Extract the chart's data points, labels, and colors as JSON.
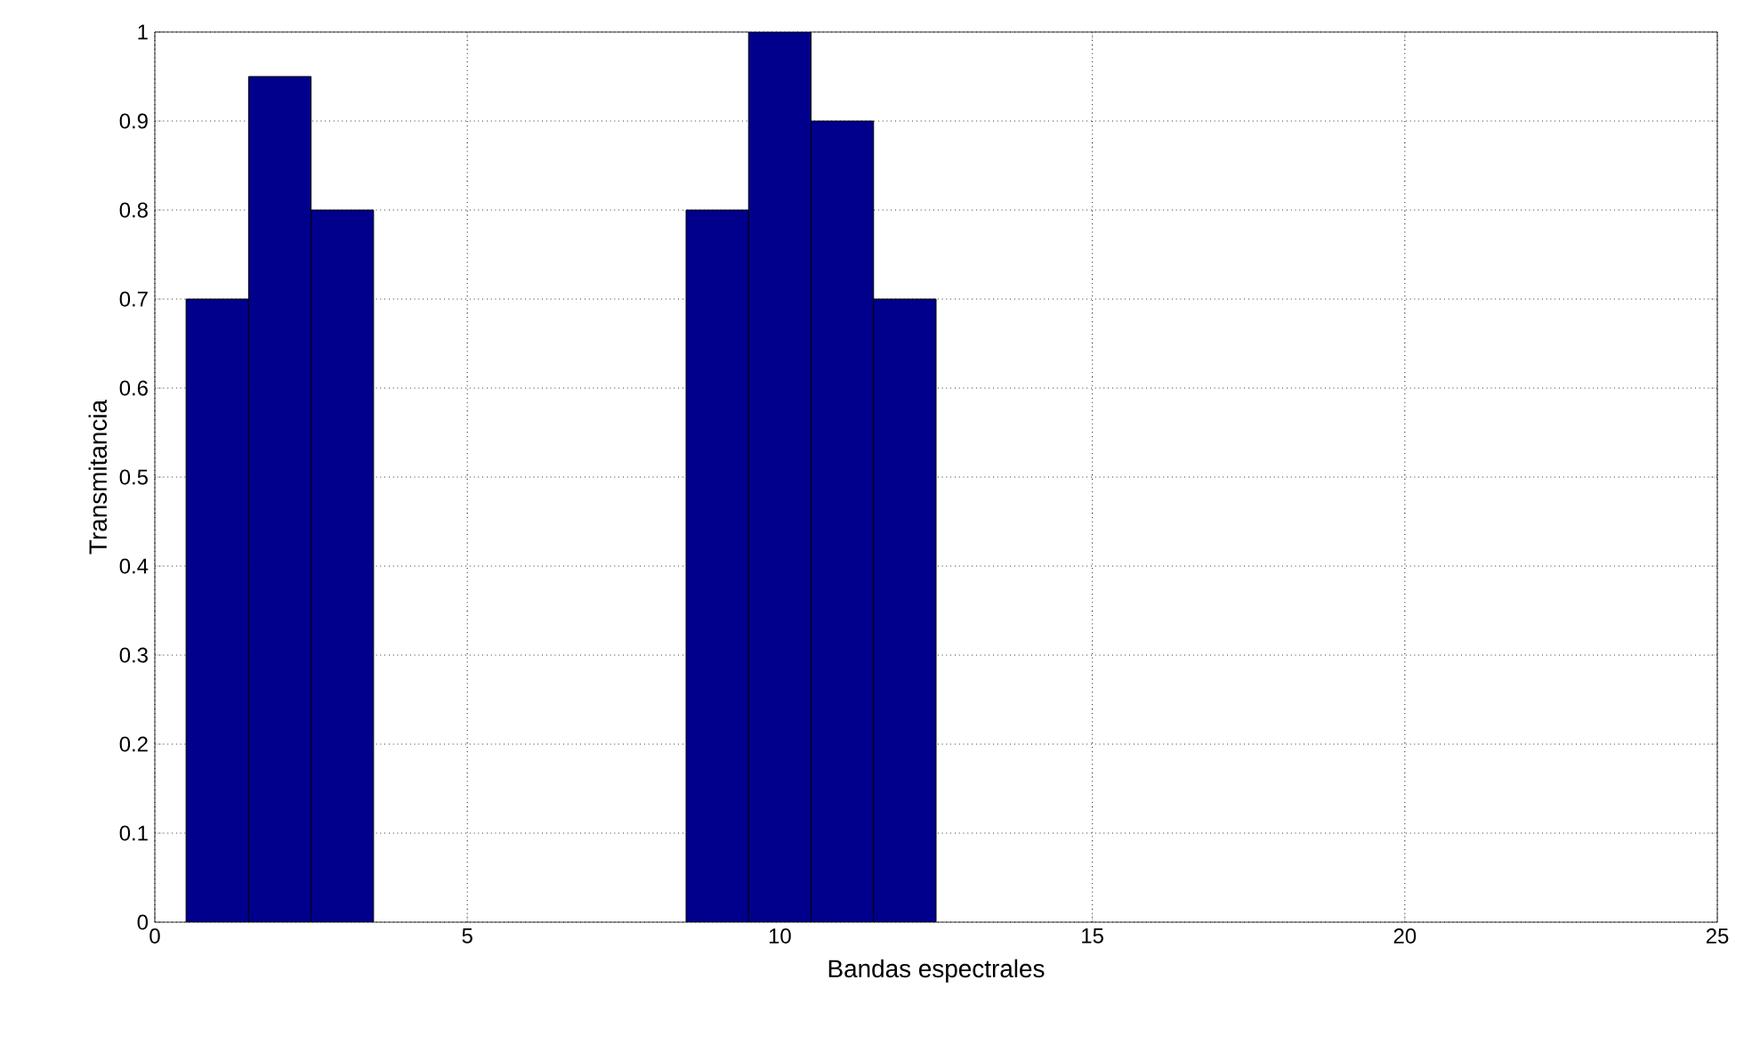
{
  "chart_data": {
    "type": "bar",
    "xlabel": "Bandas espectrales",
    "ylabel": "Transmitancia",
    "x": [
      1,
      2,
      3,
      9,
      10,
      11,
      12
    ],
    "values": [
      0.7,
      0.95,
      0.8,
      0.8,
      1.0,
      0.9,
      0.7
    ],
    "color": "#00008c",
    "xlim": [
      0,
      25
    ],
    "xticks": [
      0,
      5,
      10,
      15,
      20,
      25
    ],
    "ylim": [
      0,
      1
    ],
    "yticks": [
      0,
      0.1,
      0.2,
      0.3,
      0.4,
      0.5,
      0.6,
      0.7,
      0.8,
      0.9,
      1
    ],
    "grid": true
  }
}
